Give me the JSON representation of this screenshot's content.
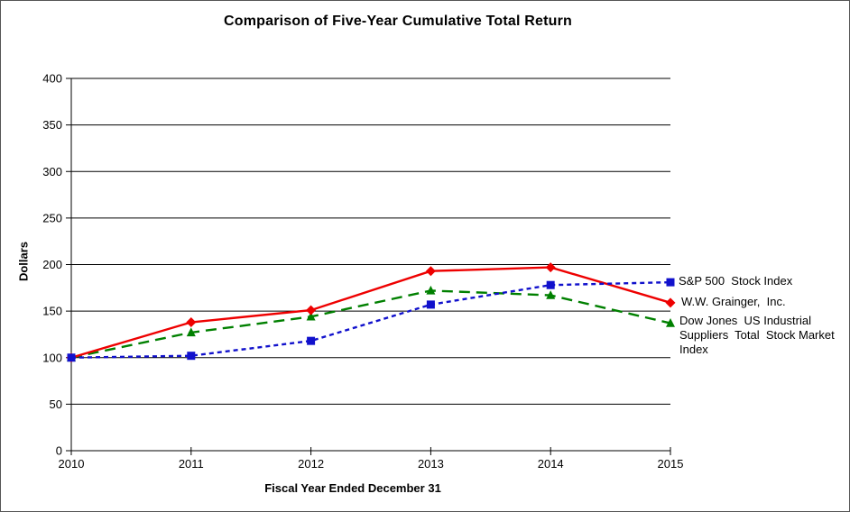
{
  "chart_data": {
    "type": "line",
    "title": "Comparison of Five-Year Cumulative Total Return",
    "xlabel": "Fiscal Year Ended December 31",
    "ylabel": "Dollars",
    "categories": [
      "2010",
      "2011",
      "2012",
      "2013",
      "2014",
      "2015"
    ],
    "ylim": [
      0,
      400
    ],
    "yticks": [
      0,
      50,
      100,
      150,
      200,
      250,
      300,
      350,
      400
    ],
    "grid": "horizontal",
    "legend_position": "right-of-line-ends",
    "series": [
      {
        "name": "S&P 500  Stock Index",
        "values": [
          100,
          102,
          118,
          157,
          178,
          181
        ],
        "color": "#1111CC",
        "marker": "square",
        "line_style": "dashed",
        "dash": "5,4"
      },
      {
        "name": "W.W. Grainger,  Inc.",
        "values": [
          100,
          138,
          151,
          193,
          197,
          159
        ],
        "color": "#EE0000",
        "marker": "diamond",
        "line_style": "solid",
        "dash": ""
      },
      {
        "name": "Dow Jones  US Industrial\nSuppliers  Total  Stock Market\nIndex",
        "values": [
          100,
          127,
          144,
          172,
          167,
          137
        ],
        "color": "#008000",
        "marker": "triangle",
        "line_style": "long-dash",
        "dash": "12,7"
      }
    ]
  }
}
